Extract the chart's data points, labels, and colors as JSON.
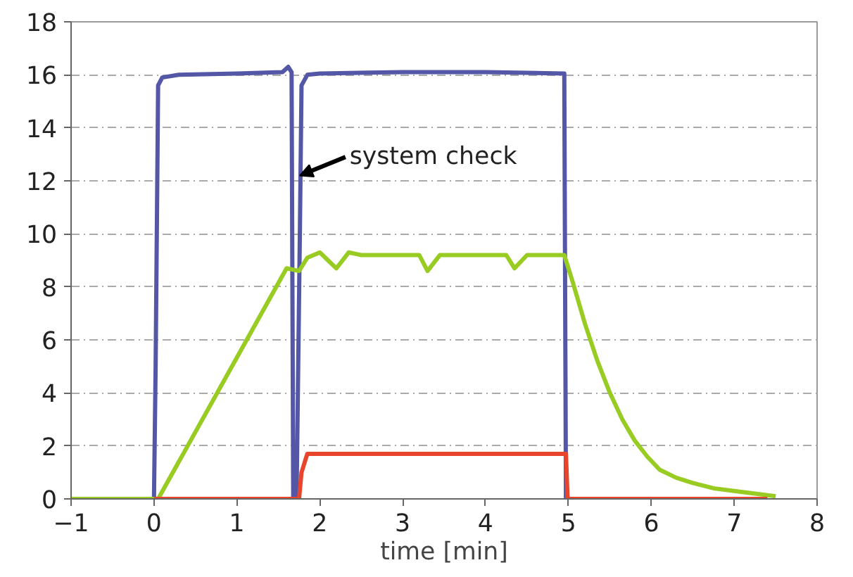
{
  "chart_data": {
    "type": "line",
    "xlabel": "time [min]",
    "xlim": [
      -1,
      8
    ],
    "xticks": [
      -1,
      0,
      1,
      2,
      3,
      4,
      5,
      6,
      7,
      8
    ],
    "ylim": [
      0,
      18
    ],
    "yticks": [
      0,
      2,
      4,
      6,
      8,
      10,
      12,
      14,
      16,
      18
    ],
    "grid": "y",
    "marker": "none",
    "line_style": "solid",
    "annotations": [
      {
        "text": "system check",
        "x": 1.76,
        "y": 12.2
      }
    ],
    "series": [
      {
        "color": "#5457a6",
        "x": [
          -1,
          0,
          0.02,
          0.05,
          0.1,
          0.3,
          1.0,
          1.55,
          1.62,
          1.66,
          1.68,
          1.72,
          1.76,
          1.78,
          1.85,
          2.0,
          3.0,
          4.0,
          4.95,
          4.97,
          5.0
        ],
        "values": [
          0,
          0,
          5,
          15.6,
          15.9,
          16.0,
          16.05,
          16.1,
          16.3,
          16.1,
          0,
          0,
          10,
          15.6,
          16.0,
          16.05,
          16.1,
          16.1,
          16.05,
          0,
          0
        ]
      },
      {
        "color": "#99cc22",
        "x": [
          -1,
          0.05,
          1.6,
          1.75,
          1.85,
          2.0,
          2.1,
          2.2,
          2.35,
          2.5,
          3.2,
          3.3,
          3.45,
          4.25,
          4.35,
          4.5,
          4.95,
          5.05,
          5.2,
          5.35,
          5.5,
          5.65,
          5.8,
          5.95,
          6.1,
          6.3,
          6.5,
          6.75,
          7.0,
          7.25,
          7.5
        ],
        "values": [
          0,
          0,
          8.7,
          8.6,
          9.1,
          9.3,
          9.0,
          8.7,
          9.3,
          9.2,
          9.2,
          8.6,
          9.2,
          9.2,
          8.7,
          9.2,
          9.2,
          8.2,
          6.6,
          5.2,
          4.0,
          3.0,
          2.2,
          1.6,
          1.1,
          0.8,
          0.6,
          0.4,
          0.3,
          0.2,
          0.1
        ]
      },
      {
        "color": "#e8452c",
        "x": [
          0,
          1.75,
          1.78,
          1.85,
          4.97,
          4.99,
          7.4
        ],
        "values": [
          0,
          0,
          1.0,
          1.7,
          1.7,
          0,
          0
        ]
      }
    ]
  }
}
